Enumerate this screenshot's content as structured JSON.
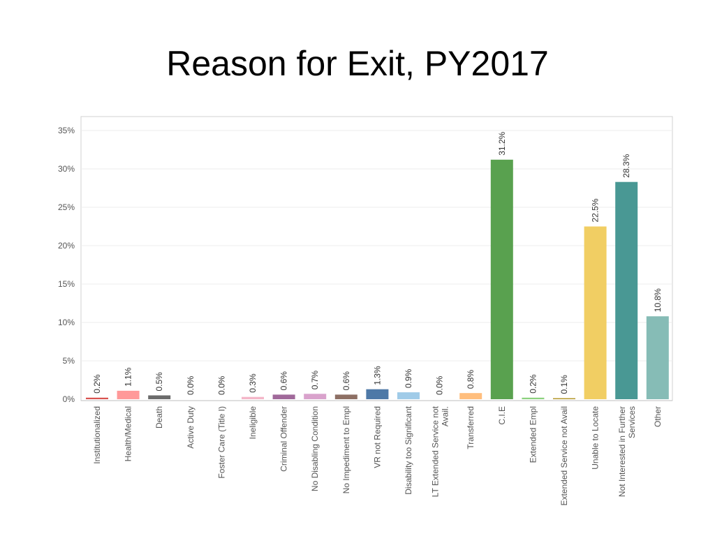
{
  "slide": {
    "title": "Reason for Exit, PY2017"
  },
  "chart_data": {
    "type": "bar",
    "title": "",
    "xlabel": "",
    "ylabel": "",
    "ylim": [
      0,
      36
    ],
    "grid": true,
    "y_ticks": [
      {
        "value": 0,
        "label": "0%"
      },
      {
        "value": 5,
        "label": "5%"
      },
      {
        "value": 10,
        "label": "10%"
      },
      {
        "value": 15,
        "label": "15%"
      },
      {
        "value": 20,
        "label": "20%"
      },
      {
        "value": 25,
        "label": "25%"
      },
      {
        "value": 30,
        "label": "30%"
      },
      {
        "value": 35,
        "label": "35%"
      }
    ],
    "bars": [
      {
        "category": [
          "Institutionalized"
        ],
        "value": 0.2,
        "label": "0.2%",
        "color": "#d9534f"
      },
      {
        "category": [
          "Health/Medical"
        ],
        "value": 1.1,
        "label": "1.1%",
        "color": "#ff9999"
      },
      {
        "category": [
          "Death"
        ],
        "value": 0.5,
        "label": "0.5%",
        "color": "#6b6b6b"
      },
      {
        "category": [
          "Active Duty"
        ],
        "value": 0.0,
        "label": "0.0%",
        "color": "#bbbbbb"
      },
      {
        "category": [
          "Foster Care (Title I)"
        ],
        "value": 0.0,
        "label": "0.0%",
        "color": "#cccccc"
      },
      {
        "category": [
          "Ineligible"
        ],
        "value": 0.3,
        "label": "0.3%",
        "color": "#f4b6c8"
      },
      {
        "category": [
          "Criminal Offender"
        ],
        "value": 0.6,
        "label": "0.6%",
        "color": "#a0699a"
      },
      {
        "category": [
          "No Disabling Condition"
        ],
        "value": 0.7,
        "label": "0.7%",
        "color": "#d9a2cc"
      },
      {
        "category": [
          "No Impediment to Empl"
        ],
        "value": 0.6,
        "label": "0.6%",
        "color": "#8d6f64"
      },
      {
        "category": [
          "VR not Required"
        ],
        "value": 1.3,
        "label": "1.3%",
        "color": "#4e79a7"
      },
      {
        "category": [
          "Disability too Significant"
        ],
        "value": 0.9,
        "label": "0.9%",
        "color": "#a0cbe8"
      },
      {
        "category": [
          "LT Extended Service not",
          "Avail."
        ],
        "value": 0.0,
        "label": "0.0%",
        "color": "#f28e2b"
      },
      {
        "category": [
          "Transferred"
        ],
        "value": 0.8,
        "label": "0.8%",
        "color": "#ffbe7d"
      },
      {
        "category": [
          "C.I.E"
        ],
        "value": 31.2,
        "label": "31.2%",
        "color": "#59a14f"
      },
      {
        "category": [
          "Extended Empl"
        ],
        "value": 0.2,
        "label": "0.2%",
        "color": "#8cd17d"
      },
      {
        "category": [
          "Extended Service not Avail"
        ],
        "value": 0.1,
        "label": "0.1%",
        "color": "#b6992d"
      },
      {
        "category": [
          "Unable to Locate"
        ],
        "value": 22.5,
        "label": "22.5%",
        "color": "#f1ce63"
      },
      {
        "category": [
          "Not Interested in Further",
          "Services"
        ],
        "value": 28.3,
        "label": "28.3%",
        "color": "#499894"
      },
      {
        "category": [
          "Other"
        ],
        "value": 10.8,
        "label": "10.8%",
        "color": "#86bcb6"
      }
    ]
  }
}
